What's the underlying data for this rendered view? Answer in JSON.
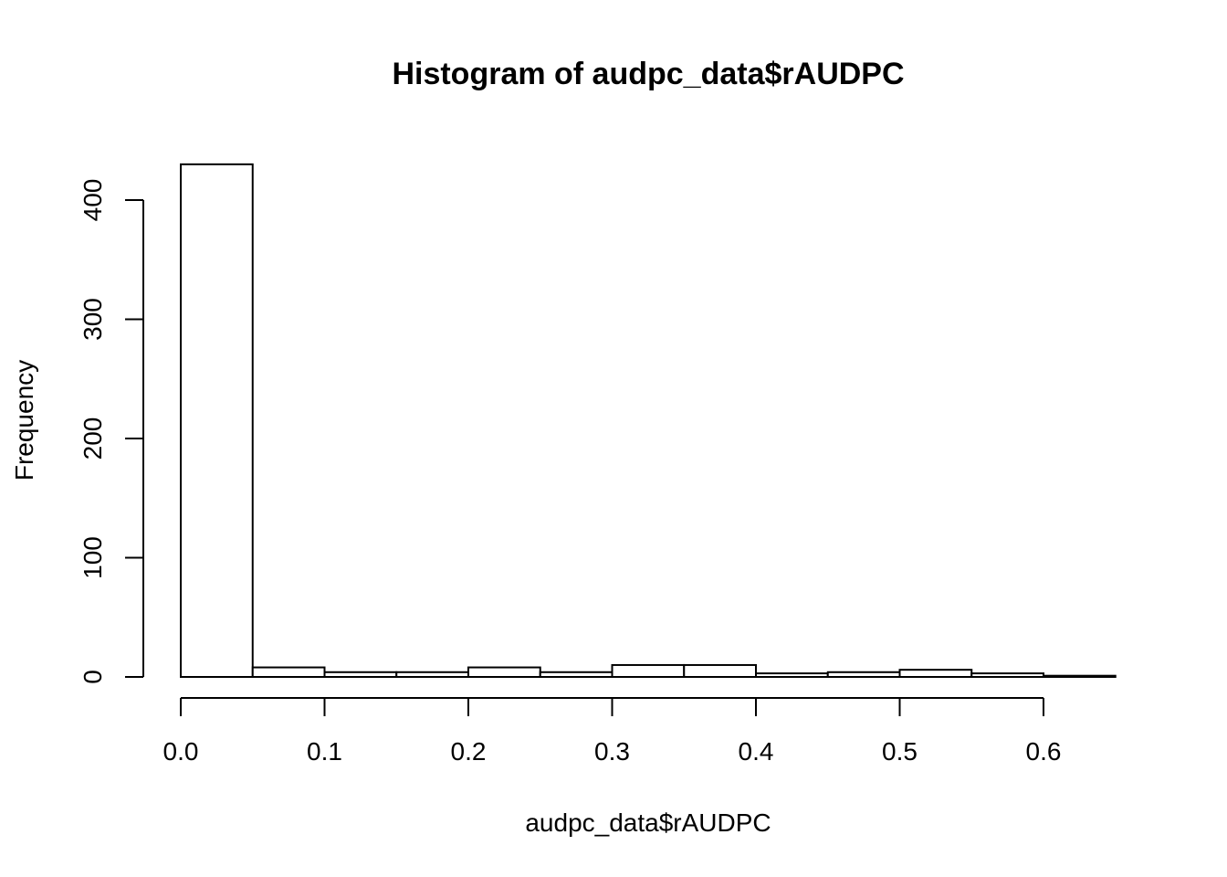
{
  "chart_data": {
    "type": "bar",
    "title": "Histogram of audpc_data$rAUDPC",
    "xlabel": "audpc_data$rAUDPC",
    "ylabel": "Frequency",
    "bin_edges": [
      0.0,
      0.05,
      0.1,
      0.15,
      0.2,
      0.25,
      0.3,
      0.35,
      0.4,
      0.45,
      0.5,
      0.55,
      0.6,
      0.65
    ],
    "values": [
      430,
      8,
      4,
      4,
      8,
      4,
      10,
      10,
      3,
      4,
      6,
      3,
      1
    ],
    "xlim": [
      0.0,
      0.65
    ],
    "ylim": [
      0,
      430
    ],
    "x_ticks": [
      0.0,
      0.1,
      0.2,
      0.3,
      0.4,
      0.5,
      0.6
    ],
    "x_tick_labels": [
      "0.0",
      "0.1",
      "0.2",
      "0.3",
      "0.4",
      "0.5",
      "0.6"
    ],
    "y_ticks": [
      0,
      100,
      200,
      300,
      400
    ],
    "y_tick_labels": [
      "0",
      "100",
      "200",
      "300",
      "400"
    ],
    "grid": false,
    "legend": "none",
    "bar_fill": "#ffffff",
    "bar_stroke": "#000000"
  }
}
